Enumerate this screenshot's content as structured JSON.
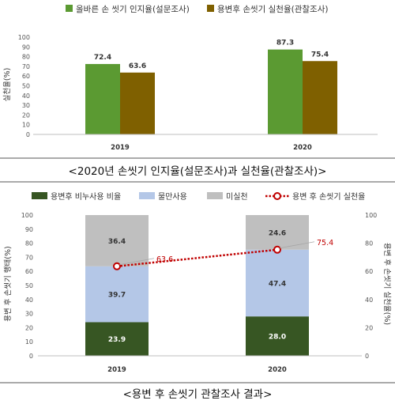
{
  "chart_data": [
    {
      "type": "bar",
      "categories": [
        "2019",
        "2020"
      ],
      "series": [
        {
          "name": "올바른 손 씻기 인지율(설문조사)",
          "values": [
            72.4,
            87.3
          ],
          "color": "#5b9a32"
        },
        {
          "name": "용변후 손씻기 실천율(관찰조사)",
          "values": [
            63.6,
            75.4
          ],
          "color": "#7f6000"
        }
      ],
      "ylabel": "실천율(%)",
      "ylim": [
        0,
        100
      ],
      "yticks": [
        "0",
        "10",
        "20",
        "30",
        "40",
        "50",
        "60",
        "70",
        "80",
        "90",
        "100"
      ],
      "data_labels": [
        [
          "72.4",
          "87.3"
        ],
        [
          "63.6",
          "75.4"
        ]
      ],
      "legend": "top",
      "grid": false,
      "caption": "<2020년 손씻기 인지율(설문조사)과 실천율(관찰조사)>"
    },
    {
      "type": "bar",
      "stacked": true,
      "categories": [
        "2019",
        "2020"
      ],
      "series": [
        {
          "name": "용변후 비누사용 비율",
          "values": [
            23.9,
            28.0
          ],
          "labels": [
            "23.9",
            "28.0"
          ],
          "color": "#375623"
        },
        {
          "name": "물만사용",
          "values": [
            39.7,
            47.4
          ],
          "labels": [
            "39.7",
            "47.4"
          ],
          "color": "#b4c7e7"
        },
        {
          "name": "미실천",
          "values": [
            36.4,
            24.6
          ],
          "labels": [
            "36.4",
            "24.6"
          ],
          "color": "#bfbfbf"
        }
      ],
      "line_series": {
        "name": "용변 후 손씻기 실천율",
        "values": [
          63.6,
          75.4
        ],
        "labels": [
          "63.6",
          "75.4"
        ],
        "color": "#c00000"
      },
      "ylabel_left": "용변 후 손씻기 행태(%)",
      "ylabel_right": "용변 후 손씻기 실천율(%)",
      "ylim": [
        0,
        100
      ],
      "yticks_left": [
        "0",
        "10",
        "20",
        "30",
        "40",
        "50",
        "60",
        "70",
        "80",
        "90",
        "100"
      ],
      "yticks_right": [
        "0",
        "20",
        "40",
        "60",
        "80",
        "100"
      ],
      "legend": "top",
      "grid": false,
      "caption": "<용변 후 손씻기 관찰조사 결과>"
    }
  ]
}
